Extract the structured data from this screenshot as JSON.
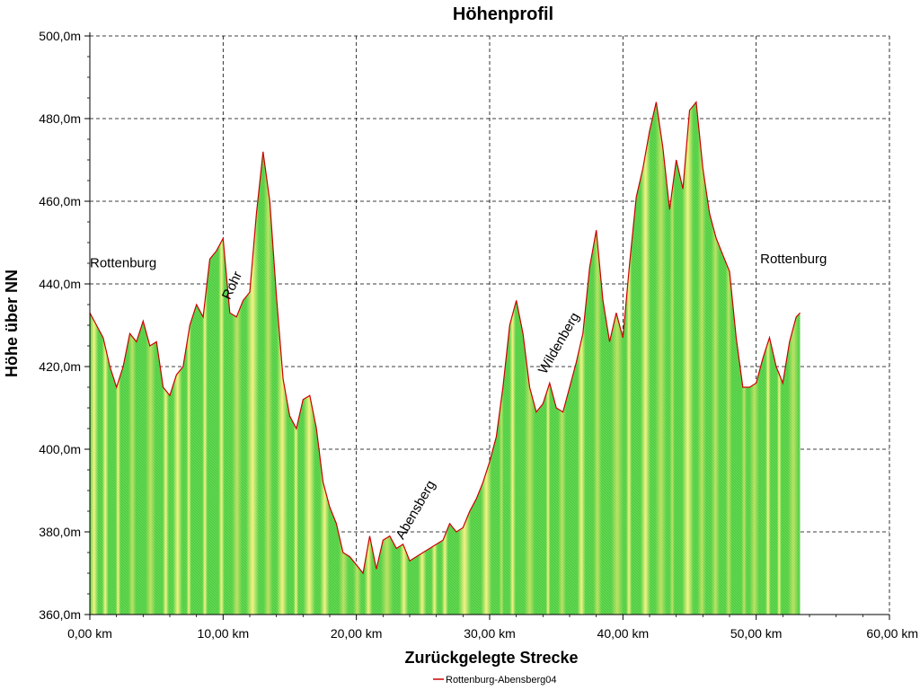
{
  "chart_data": {
    "type": "area",
    "title": "Höhenprofil",
    "xlabel": "Zurückgelegte Strecke",
    "ylabel": "Höhe über NN",
    "xlim": [
      0,
      60
    ],
    "ylim": [
      360,
      500
    ],
    "x_ticks": [
      0,
      10,
      20,
      30,
      40,
      50,
      60
    ],
    "x_tick_labels": [
      "0,00 km",
      "10,00 km",
      "20,00 km",
      "30,00 km",
      "40,00 km",
      "50,00 km",
      "60,00 km"
    ],
    "y_ticks": [
      360,
      380,
      400,
      420,
      440,
      460,
      480,
      500
    ],
    "y_tick_labels": [
      "360,0m",
      "380,0m",
      "400,0m",
      "420,0m",
      "440,0m",
      "460,0m",
      "480,0m",
      "500,0m"
    ],
    "grid": true,
    "legend_position": "bottom",
    "series": [
      {
        "name": "Rottenburg-Abensberg04",
        "color": "#cc0000",
        "x": [
          0.0,
          0.5,
          1.0,
          1.5,
          2.0,
          2.5,
          3.0,
          3.5,
          4.0,
          4.5,
          5.0,
          5.5,
          6.0,
          6.5,
          7.0,
          7.5,
          8.0,
          8.5,
          9.0,
          9.5,
          10.0,
          10.5,
          11.0,
          11.5,
          12.0,
          12.5,
          13.0,
          13.5,
          14.0,
          14.5,
          15.0,
          15.5,
          16.0,
          16.5,
          17.0,
          17.5,
          18.0,
          18.5,
          19.0,
          19.5,
          20.0,
          20.5,
          21.0,
          21.5,
          22.0,
          22.5,
          23.0,
          23.5,
          24.0,
          24.5,
          25.0,
          25.5,
          26.0,
          26.5,
          27.0,
          27.5,
          28.0,
          28.5,
          29.0,
          29.5,
          30.0,
          30.5,
          31.0,
          31.5,
          32.0,
          32.5,
          33.0,
          33.5,
          34.0,
          34.5,
          35.0,
          35.5,
          36.0,
          36.5,
          37.0,
          37.5,
          38.0,
          38.5,
          39.0,
          39.5,
          40.0,
          40.5,
          41.0,
          41.5,
          42.0,
          42.5,
          43.0,
          43.5,
          44.0,
          44.5,
          45.0,
          45.5,
          46.0,
          46.5,
          47.0,
          47.5,
          48.0,
          48.5,
          49.0,
          49.5,
          50.0,
          50.5,
          51.0,
          51.5,
          52.0,
          52.5,
          53.0,
          53.3
        ],
        "values": [
          433,
          430,
          427,
          420,
          415,
          420,
          428,
          426,
          431,
          425,
          426,
          415,
          413,
          418,
          420,
          430,
          435,
          432,
          446,
          448,
          451,
          433,
          432,
          436,
          438,
          457,
          472,
          460,
          437,
          417,
          408,
          405,
          412,
          413,
          405,
          392,
          386,
          382,
          375,
          374,
          372,
          370,
          379,
          371,
          378,
          379,
          376,
          377,
          373,
          374,
          375,
          376,
          377,
          378,
          382,
          380,
          381,
          385,
          388,
          392,
          397,
          403,
          415,
          430,
          436,
          428,
          415,
          409,
          411,
          416,
          410,
          409,
          415,
          421,
          428,
          444,
          453,
          436,
          426,
          433,
          427,
          445,
          461,
          468,
          477,
          484,
          473,
          458,
          470,
          463,
          482,
          484,
          468,
          457,
          451,
          447,
          443,
          427,
          415,
          415,
          416,
          422,
          427,
          420,
          416,
          426,
          432,
          433
        ]
      }
    ],
    "annotations": [
      {
        "text": "Rottenburg",
        "x": 0.0,
        "y": 444,
        "rotation": 0
      },
      {
        "text": "Rohr",
        "x": 10.5,
        "y": 436,
        "rotation": -65
      },
      {
        "text": "Abensberg",
        "x": 23.5,
        "y": 378,
        "rotation": -60
      },
      {
        "text": "Wildenberg",
        "x": 34.2,
        "y": 418,
        "rotation": -60
      },
      {
        "text": "Rottenburg",
        "x": 50.3,
        "y": 445,
        "rotation": 0
      }
    ]
  }
}
